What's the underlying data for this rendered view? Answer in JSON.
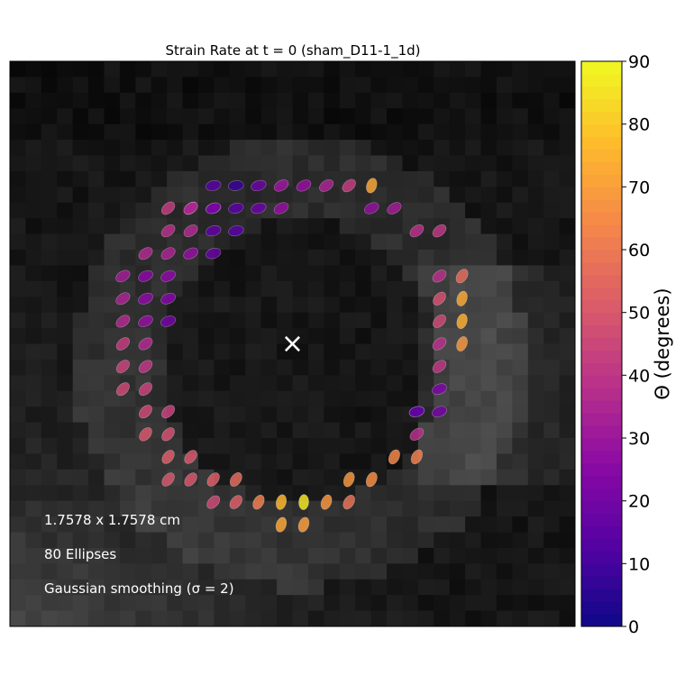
{
  "chart_data": {
    "type": "scatter",
    "title": "Strain Rate at t = 0 (sham_D11-1_1d)",
    "marker": "ellipse",
    "annotations": {
      "center_marker": "×",
      "lines": [
        "1.7578 x 1.7578 cm",
        "80 Ellipses",
        "Gaussian smoothing (σ = 2)"
      ]
    },
    "grid_units": {
      "x_range": [
        0,
        25
      ],
      "y_range": [
        0,
        25
      ]
    },
    "center": {
      "x": 12.5,
      "y": 12.5
    },
    "colorbar": {
      "label": "Θ (degrees)",
      "range": [
        0,
        90
      ],
      "ticks": [
        "0",
        "10",
        "20",
        "30",
        "40",
        "50",
        "60",
        "70",
        "80",
        "90"
      ],
      "colormap": "plasma"
    },
    "ellipses": [
      {
        "x": 9.0,
        "y": 19.5,
        "theta": 14
      },
      {
        "x": 10.0,
        "y": 19.5,
        "theta": 8
      },
      {
        "x": 11.0,
        "y": 19.5,
        "theta": 18
      },
      {
        "x": 12.0,
        "y": 19.5,
        "theta": 30
      },
      {
        "x": 13.0,
        "y": 19.5,
        "theta": 28
      },
      {
        "x": 14.0,
        "y": 19.5,
        "theta": 34
      },
      {
        "x": 15.0,
        "y": 19.5,
        "theta": 42
      },
      {
        "x": 16.0,
        "y": 19.5,
        "theta": 72
      },
      {
        "x": 7.0,
        "y": 18.5,
        "theta": 42
      },
      {
        "x": 8.0,
        "y": 18.5,
        "theta": 40
      },
      {
        "x": 9.0,
        "y": 18.5,
        "theta": 16
      },
      {
        "x": 10.0,
        "y": 18.5,
        "theta": 14
      },
      {
        "x": 11.0,
        "y": 18.5,
        "theta": 18
      },
      {
        "x": 12.0,
        "y": 18.5,
        "theta": 28
      },
      {
        "x": 16.0,
        "y": 18.5,
        "theta": 28
      },
      {
        "x": 17.0,
        "y": 18.5,
        "theta": 32
      },
      {
        "x": 7.0,
        "y": 17.5,
        "theta": 38
      },
      {
        "x": 8.0,
        "y": 17.5,
        "theta": 36
      },
      {
        "x": 9.0,
        "y": 17.5,
        "theta": 16
      },
      {
        "x": 10.0,
        "y": 17.5,
        "theta": 14
      },
      {
        "x": 18.0,
        "y": 17.5,
        "theta": 38
      },
      {
        "x": 19.0,
        "y": 17.5,
        "theta": 40
      },
      {
        "x": 6.0,
        "y": 16.5,
        "theta": 36
      },
      {
        "x": 7.0,
        "y": 16.5,
        "theta": 34
      },
      {
        "x": 8.0,
        "y": 16.5,
        "theta": 28
      },
      {
        "x": 9.0,
        "y": 16.5,
        "theta": 18
      },
      {
        "x": 5.0,
        "y": 15.5,
        "theta": 32
      },
      {
        "x": 6.0,
        "y": 15.5,
        "theta": 26
      },
      {
        "x": 7.0,
        "y": 15.5,
        "theta": 26
      },
      {
        "x": 19.0,
        "y": 15.5,
        "theta": 38
      },
      {
        "x": 20.0,
        "y": 15.5,
        "theta": 56
      },
      {
        "x": 5.0,
        "y": 14.5,
        "theta": 34
      },
      {
        "x": 6.0,
        "y": 14.5,
        "theta": 26
      },
      {
        "x": 7.0,
        "y": 14.5,
        "theta": 24
      },
      {
        "x": 19.0,
        "y": 14.5,
        "theta": 48
      },
      {
        "x": 20.0,
        "y": 14.5,
        "theta": 72
      },
      {
        "x": 5.0,
        "y": 13.5,
        "theta": 36
      },
      {
        "x": 6.0,
        "y": 13.5,
        "theta": 28
      },
      {
        "x": 7.0,
        "y": 13.5,
        "theta": 20
      },
      {
        "x": 19.0,
        "y": 13.5,
        "theta": 46
      },
      {
        "x": 20.0,
        "y": 13.5,
        "theta": 74
      },
      {
        "x": 5.0,
        "y": 12.5,
        "theta": 42
      },
      {
        "x": 6.0,
        "y": 12.5,
        "theta": 36
      },
      {
        "x": 19.0,
        "y": 12.5,
        "theta": 38
      },
      {
        "x": 20.0,
        "y": 12.5,
        "theta": 68
      },
      {
        "x": 5.0,
        "y": 11.5,
        "theta": 44
      },
      {
        "x": 6.0,
        "y": 11.5,
        "theta": 40
      },
      {
        "x": 19.0,
        "y": 11.5,
        "theta": 40
      },
      {
        "x": 5.0,
        "y": 10.5,
        "theta": 46
      },
      {
        "x": 6.0,
        "y": 10.5,
        "theta": 44
      },
      {
        "x": 19.0,
        "y": 10.5,
        "theta": 22
      },
      {
        "x": 6.0,
        "y": 9.5,
        "theta": 46
      },
      {
        "x": 7.0,
        "y": 9.5,
        "theta": 44
      },
      {
        "x": 18.0,
        "y": 9.5,
        "theta": 16
      },
      {
        "x": 19.0,
        "y": 9.5,
        "theta": 20
      },
      {
        "x": 6.0,
        "y": 8.5,
        "theta": 50
      },
      {
        "x": 7.0,
        "y": 8.5,
        "theta": 48
      },
      {
        "x": 18.0,
        "y": 8.5,
        "theta": 38
      },
      {
        "x": 7.0,
        "y": 7.5,
        "theta": 52
      },
      {
        "x": 8.0,
        "y": 7.5,
        "theta": 50
      },
      {
        "x": 17.0,
        "y": 7.5,
        "theta": 64
      },
      {
        "x": 18.0,
        "y": 7.5,
        "theta": 62
      },
      {
        "x": 7.0,
        "y": 6.5,
        "theta": 50
      },
      {
        "x": 8.0,
        "y": 6.5,
        "theta": 50
      },
      {
        "x": 9.0,
        "y": 6.5,
        "theta": 52
      },
      {
        "x": 10.0,
        "y": 6.5,
        "theta": 56
      },
      {
        "x": 15.0,
        "y": 6.5,
        "theta": 68
      },
      {
        "x": 16.0,
        "y": 6.5,
        "theta": 66
      },
      {
        "x": 9.0,
        "y": 5.5,
        "theta": 46
      },
      {
        "x": 10.0,
        "y": 5.5,
        "theta": 52
      },
      {
        "x": 11.0,
        "y": 5.5,
        "theta": 62
      },
      {
        "x": 12.0,
        "y": 5.5,
        "theta": 76
      },
      {
        "x": 13.0,
        "y": 5.5,
        "theta": 86
      },
      {
        "x": 14.0,
        "y": 5.5,
        "theta": 68
      },
      {
        "x": 15.0,
        "y": 5.5,
        "theta": 58
      },
      {
        "x": 12.0,
        "y": 4.5,
        "theta": 72
      },
      {
        "x": 13.0,
        "y": 4.5,
        "theta": 70
      },
      {
        "x": 9.0,
        "y": 18.5,
        "theta": 22
      },
      {
        "x": 8.0,
        "y": 18.5,
        "theta": 34
      },
      {
        "x": 18.0,
        "y": 9.5,
        "theta": 16
      }
    ]
  }
}
